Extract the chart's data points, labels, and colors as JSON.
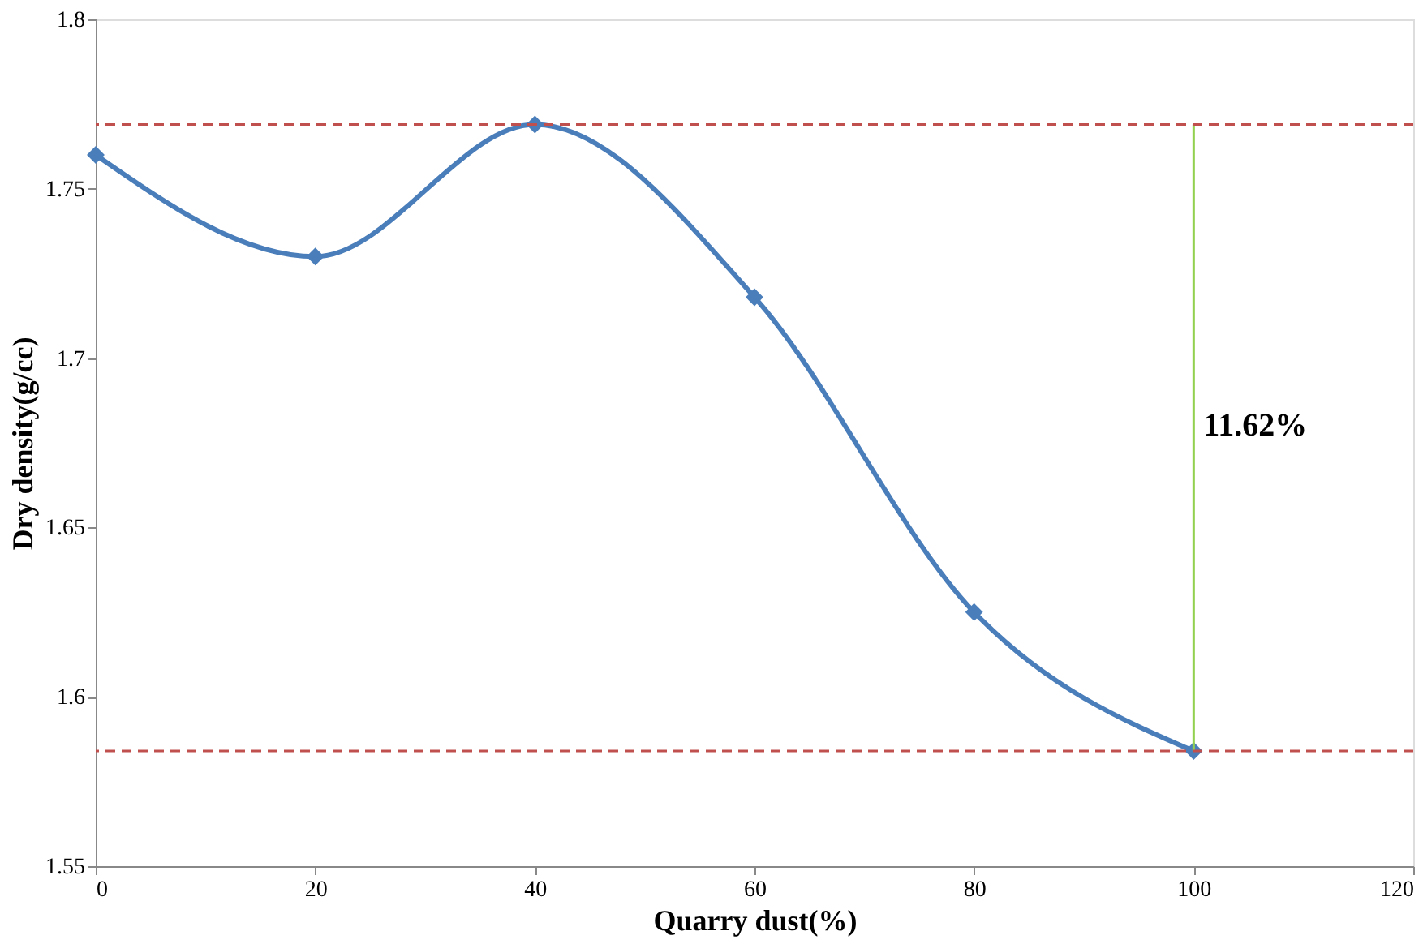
{
  "chart_data": {
    "type": "line",
    "xlabel": "Quarry dust(%)",
    "ylabel": "Dry density(g/cc)",
    "x": [
      0,
      20,
      40,
      60,
      80,
      100
    ],
    "series": [
      {
        "color": "#4a7ebb",
        "values": [
          1.76,
          1.73,
          1.769,
          1.718,
          1.625,
          1.584
        ],
        "marker": "diamond"
      },
      {
        "type": "line",
        "x": [
          100,
          100
        ],
        "values": [
          1.584,
          1.769
        ],
        "color": "#92d050",
        "marker": "none"
      }
    ],
    "xlim": [
      0,
      120
    ],
    "xticks": [
      0,
      20,
      40,
      60,
      80,
      100,
      120
    ],
    "ylim": [
      1.55,
      1.8
    ],
    "yticks": [
      1.55,
      1.6,
      1.65,
      1.7,
      1.75,
      1.8
    ],
    "ref_lines": [
      {
        "axis": "y",
        "value": 1.769,
        "color": "#c0504d",
        "line_style": "dashed"
      },
      {
        "axis": "y",
        "value": 1.584,
        "color": "#c0504d",
        "line_style": "dashed"
      }
    ],
    "annotations": [
      {
        "text": "11.62%",
        "x": 100,
        "y": 1.68
      }
    ],
    "grid": false
  }
}
